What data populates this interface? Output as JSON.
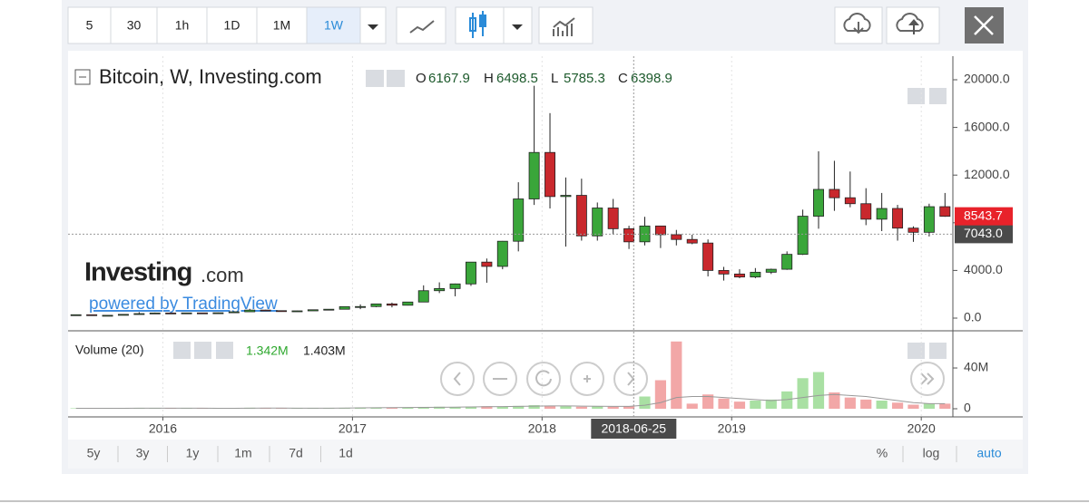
{
  "toolbar": {
    "intervals": [
      "5",
      "30",
      "1h",
      "1D",
      "1M",
      "1W"
    ]
  },
  "footer": {
    "ranges": [
      "5y",
      "3y",
      "1y",
      "1m",
      "7d",
      "1d"
    ],
    "scale_options": [
      "%",
      "log",
      "auto"
    ]
  },
  "watermark": {
    "brand": "Investing",
    "brand_suffix": ".com",
    "tagline": "powered by TradingView"
  },
  "chart_data": {
    "type": "candlestick",
    "title": "Bitcoin, W, Investing.com",
    "ohlc_legend": [
      {
        "label": "O",
        "value": 6167.9
      },
      {
        "label": "H",
        "value": 6498.5
      },
      {
        "label": "L",
        "value": 5785.3
      },
      {
        "label": "C",
        "value": 6398.9
      }
    ],
    "x": [
      "2015-07",
      "2015-08",
      "2015-09",
      "2015-10",
      "2015-11",
      "2015-12",
      "2016-01",
      "2016-02",
      "2016-03",
      "2016-04",
      "2016-05",
      "2016-06",
      "2016-07",
      "2016-08",
      "2016-09",
      "2016-10",
      "2016-11",
      "2016-12",
      "2017-01",
      "2017-02",
      "2017-03",
      "2017-04",
      "2017-05",
      "2017-06",
      "2017-07",
      "2017-08",
      "2017-09",
      "2017-10",
      "2017-11",
      "2017-12",
      "2018-01",
      "2018-02",
      "2018-03",
      "2018-04",
      "2018-05",
      "2018-06",
      "2018-07",
      "2018-08",
      "2018-09",
      "2018-10",
      "2018-11",
      "2018-12",
      "2019-01",
      "2019-02",
      "2019-03",
      "2019-04",
      "2019-05",
      "2019-06",
      "2019-07",
      "2019-08",
      "2019-09",
      "2019-10",
      "2019-11",
      "2019-12",
      "2020-01",
      "2020-02"
    ],
    "open": [
      260,
      284,
      230,
      236,
      314,
      378,
      430,
      370,
      437,
      416,
      448,
      530,
      673,
      624,
      575,
      608,
      700,
      745,
      963,
      970,
      1190,
      1080,
      1350,
      2300,
      2480,
      2870,
      4700,
      4340,
      6450,
      10000,
      13900,
      10200,
      10300,
      6900,
      9240,
      7500,
      6400,
      7730,
      7000,
      6600,
      6300,
      4000,
      3700,
      3450,
      3850,
      4100,
      5350,
      8550,
      10800,
      10100,
      9600,
      8300,
      9200,
      7550,
      7200,
      9350
    ],
    "high": [
      300,
      285,
      245,
      330,
      500,
      465,
      460,
      440,
      440,
      465,
      550,
      780,
      700,
      630,
      620,
      720,
      755,
      975,
      1150,
      1200,
      1300,
      1350,
      2750,
      3000,
      2900,
      4700,
      5000,
      6470,
      11400,
      19500,
      17200,
      11800,
      11700,
      9700,
      10000,
      7750,
      8500,
      7750,
      7400,
      7000,
      6600,
      4300,
      4100,
      4200,
      4150,
      5600,
      9100,
      14000,
      13200,
      12300,
      10900,
      10500,
      9500,
      7700,
      9600,
      10500
    ],
    "low": [
      260,
      200,
      225,
      235,
      300,
      350,
      355,
      365,
      400,
      415,
      440,
      530,
      600,
      530,
      590,
      605,
      690,
      740,
      750,
      920,
      900,
      1060,
      1330,
      2100,
      1830,
      2700,
      2970,
      4100,
      5600,
      9500,
      9200,
      6000,
      6500,
      6500,
      7000,
      5800,
      6100,
      5880,
      6100,
      6200,
      3500,
      3150,
      3350,
      3350,
      3700,
      4050,
      5300,
      7500,
      9000,
      9300,
      7800,
      7300,
      6500,
      6400,
      6850,
      8500
    ],
    "close": [
      284,
      230,
      236,
      314,
      378,
      430,
      370,
      437,
      416,
      448,
      530,
      673,
      624,
      575,
      608,
      700,
      745,
      963,
      970,
      1190,
      1080,
      1350,
      2300,
      2480,
      2870,
      4700,
      4340,
      6450,
      10000,
      13900,
      10200,
      10300,
      6900,
      9240,
      7500,
      6400,
      7730,
      7000,
      6600,
      6300,
      4000,
      3700,
      3450,
      3850,
      4100,
      5350,
      8550,
      10800,
      10100,
      9600,
      8300,
      9200,
      7550,
      7200,
      9350,
      8543.7
    ],
    "up_color": "#3aa63a",
    "down_color": "#c9282d",
    "wick_color": "#222222",
    "xlim": [
      "2015-07",
      "2020-03"
    ],
    "xticks": [
      {
        "value": "2016-01",
        "label": "2016"
      },
      {
        "value": "2017-01",
        "label": "2017"
      },
      {
        "value": "2018-01",
        "label": "2018"
      },
      {
        "value": "2019-01",
        "label": "2019"
      },
      {
        "value": "2020-01",
        "label": "2020"
      }
    ],
    "ylim": [
      -1065,
      21977
    ],
    "yticks": [
      {
        "value": 0,
        "label": "0.0"
      },
      {
        "value": 4000,
        "label": "4000.0"
      },
      {
        "value": 8000,
        "label": "8000.0"
      },
      {
        "value": 12000,
        "label": "12000.0"
      },
      {
        "value": 16000,
        "label": "16000.0"
      },
      {
        "value": 20000,
        "label": "20000.0"
      }
    ],
    "last_price": 8543.7,
    "crosshair": {
      "date": "2018-06-25",
      "price": {
        "value": 7043,
        "label": "7043.0"
      }
    },
    "volume": {
      "title": "Volume (20)",
      "legend": [
        "1.342M",
        "1.403M"
      ],
      "values": [
        0.5,
        0.5,
        0.4,
        0.6,
        0.9,
        0.7,
        0.6,
        0.5,
        0.5,
        0.5,
        0.6,
        1.0,
        0.8,
        0.6,
        0.5,
        0.6,
        0.7,
        0.9,
        1.2,
        1.0,
        1.3,
        1.1,
        1.8,
        2.0,
        1.6,
        2.2,
        2.5,
        2.0,
        2.8,
        3.5,
        3.0,
        2.5,
        2.0,
        2.2,
        2.0,
        2.6,
        12,
        28,
        66,
        5,
        14,
        10,
        7,
        8,
        9,
        17,
        30,
        36,
        16,
        11,
        9,
        8,
        6,
        4,
        5,
        5
      ],
      "ma": [
        0.5,
        0.5,
        0.5,
        0.5,
        0.6,
        0.6,
        0.6,
        0.6,
        0.6,
        0.5,
        0.5,
        0.6,
        0.7,
        0.7,
        0.6,
        0.6,
        0.6,
        0.7,
        0.9,
        1.0,
        1.1,
        1.2,
        1.3,
        1.5,
        1.6,
        1.8,
        2.0,
        2.1,
        2.3,
        2.6,
        2.8,
        2.8,
        2.6,
        2.4,
        2.3,
        2.3,
        3.5,
        6,
        11,
        12,
        12,
        11,
        10,
        9,
        8,
        9,
        11,
        13,
        14,
        13,
        12,
        10,
        8,
        6,
        5,
        5
      ],
      "up_color": "#a9e0a3",
      "down_color": "#f2a7a7",
      "ma_color": "#999999",
      "ylim": [
        -8,
        74.7
      ],
      "yticks": [
        0,
        {
          "value": 40,
          "label": "40M"
        }
      ]
    }
  }
}
